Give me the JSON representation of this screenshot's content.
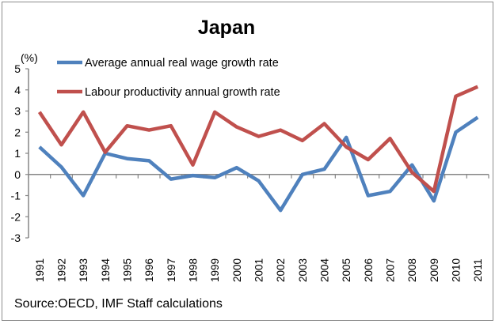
{
  "chart_data": {
    "type": "line",
    "title": "Japan",
    "ylabel": "(%)",
    "xlabel": "",
    "ylim": [
      -3,
      5
    ],
    "yticks": [
      "5",
      "4",
      "3",
      "2",
      "1",
      "0",
      "-1",
      "-2",
      "-3"
    ],
    "ytick_values": [
      5,
      4,
      3,
      2,
      1,
      0,
      -1,
      -2,
      -3
    ],
    "categories": [
      "1991",
      "1992",
      "1993",
      "1994",
      "1995",
      "1996",
      "1997",
      "1998",
      "1999",
      "2000",
      "2001",
      "2002",
      "2003",
      "2004",
      "2005",
      "2006",
      "2007",
      "2008",
      "2009",
      "2010",
      "2011"
    ],
    "grid": false,
    "legend_position": "top-left",
    "series": [
      {
        "name": "Average annual real wage growth rate",
        "color": "#4f81bd",
        "values": [
          1.3,
          0.35,
          -1.0,
          1.0,
          0.75,
          0.65,
          -0.22,
          -0.05,
          -0.15,
          0.32,
          -0.3,
          -1.7,
          0.0,
          0.25,
          1.75,
          -1.0,
          -0.8,
          0.45,
          -1.25,
          2.0,
          2.7
        ]
      },
      {
        "name": "Labour productivity annual growth rate",
        "color": "#c0504d",
        "values": [
          2.95,
          1.4,
          2.95,
          1.05,
          2.3,
          2.1,
          2.3,
          0.45,
          2.95,
          2.25,
          1.8,
          2.1,
          1.6,
          2.4,
          1.3,
          0.7,
          1.7,
          0.1,
          -0.8,
          3.7,
          4.15
        ]
      }
    ],
    "source": "Source:OECD, IMF Staff calculations"
  }
}
